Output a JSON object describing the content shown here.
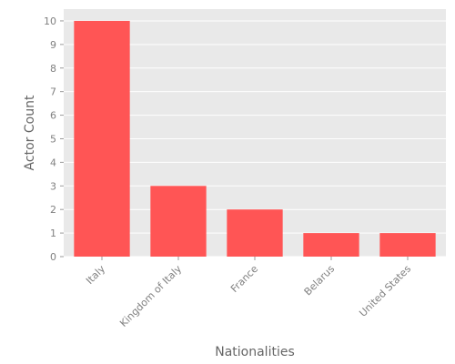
{
  "chart_data": {
    "type": "bar",
    "categories": [
      "Italy",
      "Kingdom of Italy",
      "France",
      "Belarus",
      "United States"
    ],
    "values": [
      10,
      3,
      2,
      1,
      1
    ],
    "xlabel": "Nationalities",
    "ylabel": "Actor Count",
    "ylim": [
      0,
      10.5
    ],
    "yticks": [
      "0",
      "1",
      "2",
      "3",
      "4",
      "5",
      "6",
      "7",
      "8",
      "9",
      "10"
    ],
    "grid": true,
    "legend": "none",
    "colors": {
      "bar": "#ff5555",
      "plot_background": "#e9e9e9",
      "grid": "#ffffff",
      "tick_text": "#808080",
      "axis_label_text": "#666666"
    }
  }
}
